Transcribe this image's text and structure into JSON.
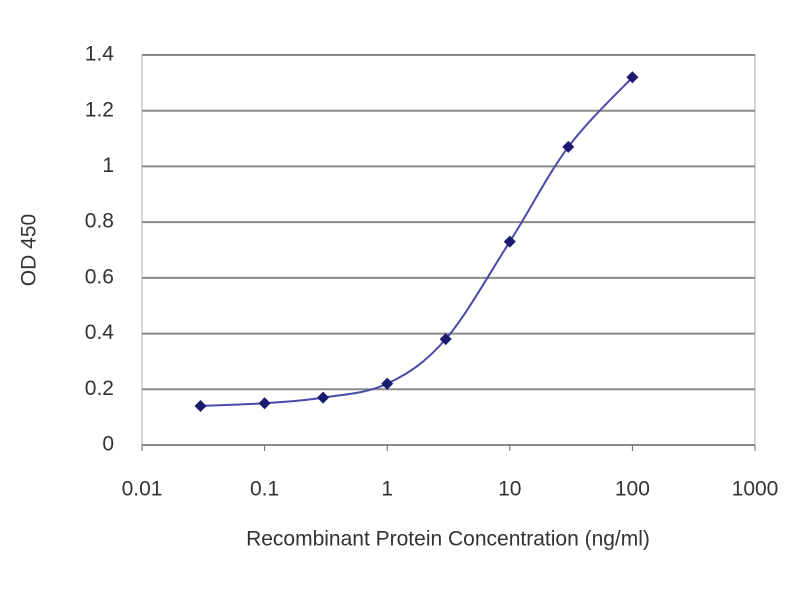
{
  "chart_data": {
    "type": "line",
    "x_label": "Recombinant Protein Concentration (ng/ml)",
    "y_label": "OD 450",
    "x": [
      0.03,
      0.1,
      0.3,
      1,
      3,
      10,
      30,
      100
    ],
    "values": [
      0.14,
      0.15,
      0.17,
      0.22,
      0.38,
      0.73,
      1.07,
      1.32
    ],
    "color": "#4a4aa8",
    "marker_color": "#1a1a6e",
    "xscale": "log",
    "xlim": [
      0.01,
      1000
    ],
    "xticks": [
      0.01,
      0.1,
      1,
      10,
      100,
      1000
    ],
    "ylim": [
      0,
      1.4
    ],
    "yticks": [
      0,
      0.2,
      0.4,
      0.6,
      0.8,
      1,
      1.2,
      1.4
    ],
    "grid": true
  }
}
